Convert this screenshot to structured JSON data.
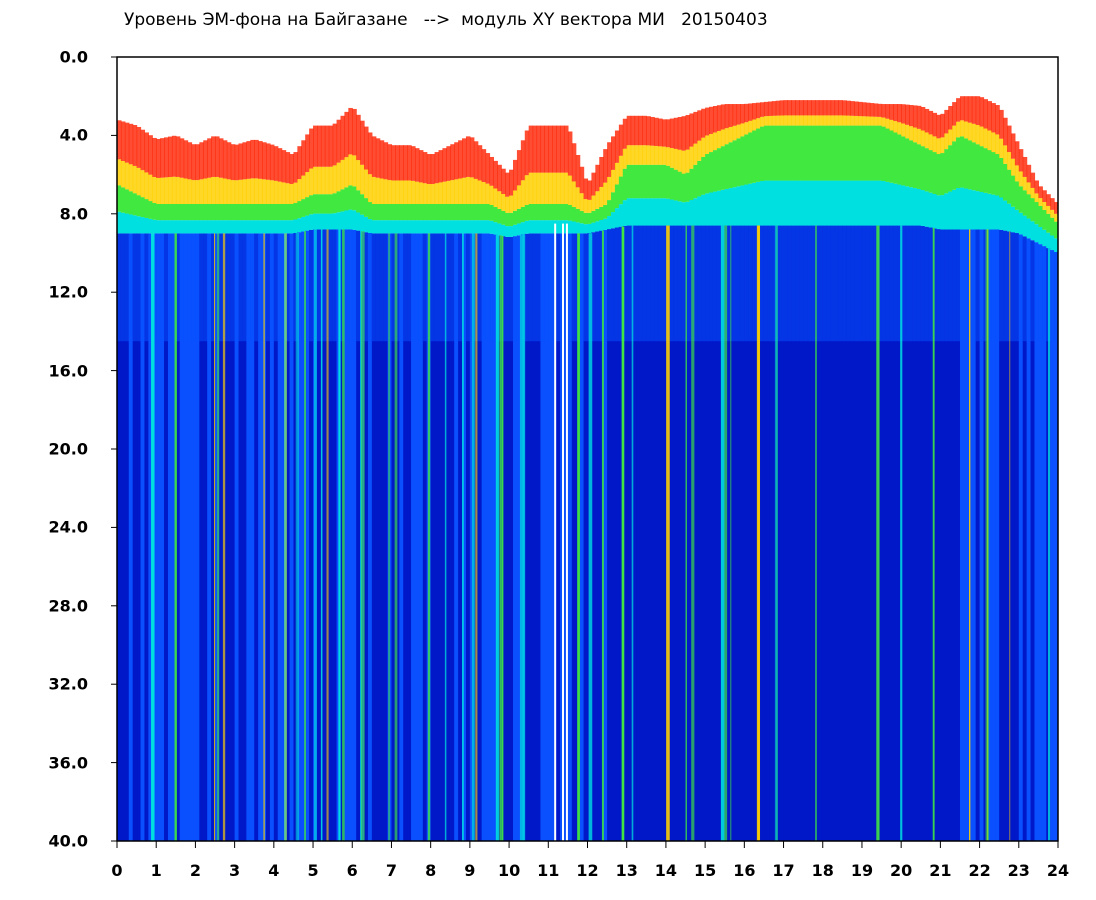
{
  "title": "Уровень ЭМ-фона на Байгазане   -->  модуль XY вектора МИ   20150403",
  "chart_data": {
    "type": "heatmap",
    "title": "Уровень ЭМ-фона на Байгазане   -->  модуль XY вектора МИ   20150403",
    "xlabel": "",
    "ylabel": "",
    "xlim": [
      0,
      24
    ],
    "ylim": [
      0.0,
      40.0
    ],
    "y_inverted": true,
    "x_tick_labels": [
      "0",
      "1",
      "2",
      "3",
      "4",
      "5",
      "6",
      "7",
      "8",
      "9",
      "10",
      "11",
      "12",
      "13",
      "14",
      "15",
      "16",
      "17",
      "18",
      "19",
      "20",
      "21",
      "22",
      "23",
      "24"
    ],
    "y_tick_labels": [
      "0.0",
      "4.0",
      "8.0",
      "12.0",
      "16.0",
      "20.0",
      "24.0",
      "28.0",
      "32.0",
      "36.0",
      "40.0"
    ],
    "colormap": [
      "#0018c8",
      "#0a50ff",
      "#00e0e0",
      "#40e840",
      "#ffd000",
      "#ff2000"
    ],
    "band_boundaries": {
      "x": [
        0,
        0.5,
        1,
        1.5,
        2,
        2.5,
        3,
        3.5,
        4,
        4.5,
        5,
        5.5,
        6,
        6.5,
        7,
        7.5,
        8,
        8.5,
        9,
        9.5,
        10,
        10.5,
        11,
        11.5,
        12,
        12.5,
        13,
        13.5,
        14,
        14.5,
        15,
        15.5,
        16,
        16.5,
        17,
        17.5,
        18,
        18.5,
        19,
        19.5,
        20,
        20.5,
        21,
        21.5,
        22,
        22.5,
        23,
        23.5,
        24
      ],
      "top_red": [
        3.2,
        3.5,
        4.2,
        4.0,
        4.5,
        4.0,
        4.5,
        4.2,
        4.5,
        5.0,
        3.5,
        3.5,
        2.5,
        4.0,
        4.5,
        4.5,
        5.0,
        4.5,
        4.0,
        5.0,
        6.0,
        3.5,
        3.5,
        3.5,
        6.5,
        4.5,
        3.0,
        3.0,
        3.2,
        3.0,
        2.6,
        2.4,
        2.4,
        2.3,
        2.2,
        2.2,
        2.2,
        2.2,
        2.3,
        2.4,
        2.4,
        2.5,
        3.0,
        2.0,
        2.0,
        2.5,
        4.5,
        6.5,
        7.5
      ],
      "green_top": [
        6.5,
        7.0,
        7.5,
        7.5,
        7.5,
        7.5,
        7.5,
        7.5,
        7.5,
        7.5,
        7.0,
        7.0,
        6.5,
        7.5,
        7.5,
        7.5,
        7.5,
        7.5,
        7.5,
        7.5,
        8.0,
        7.5,
        7.5,
        7.5,
        8.0,
        7.5,
        5.5,
        5.5,
        5.5,
        6.0,
        5.0,
        4.5,
        4.0,
        3.5,
        3.5,
        3.5,
        3.5,
        3.5,
        3.5,
        3.5,
        4.0,
        4.5,
        5.0,
        4.0,
        4.5,
        5.0,
        6.5,
        7.5,
        8.5
      ],
      "blue_top": [
        9.0,
        9.0,
        9.0,
        9.0,
        9.0,
        9.0,
        9.0,
        9.0,
        9.0,
        9.0,
        8.8,
        8.8,
        8.8,
        9.0,
        9.0,
        9.0,
        9.0,
        9.0,
        9.0,
        9.0,
        9.2,
        9.0,
        9.0,
        9.0,
        9.0,
        8.8,
        8.6,
        8.6,
        8.6,
        8.6,
        8.6,
        8.6,
        8.6,
        8.6,
        8.6,
        8.6,
        8.6,
        8.6,
        8.6,
        8.6,
        8.6,
        8.6,
        8.8,
        8.8,
        8.8,
        8.8,
        9.0,
        9.5,
        10.0
      ],
      "speckle_bottom": 14.5
    }
  }
}
